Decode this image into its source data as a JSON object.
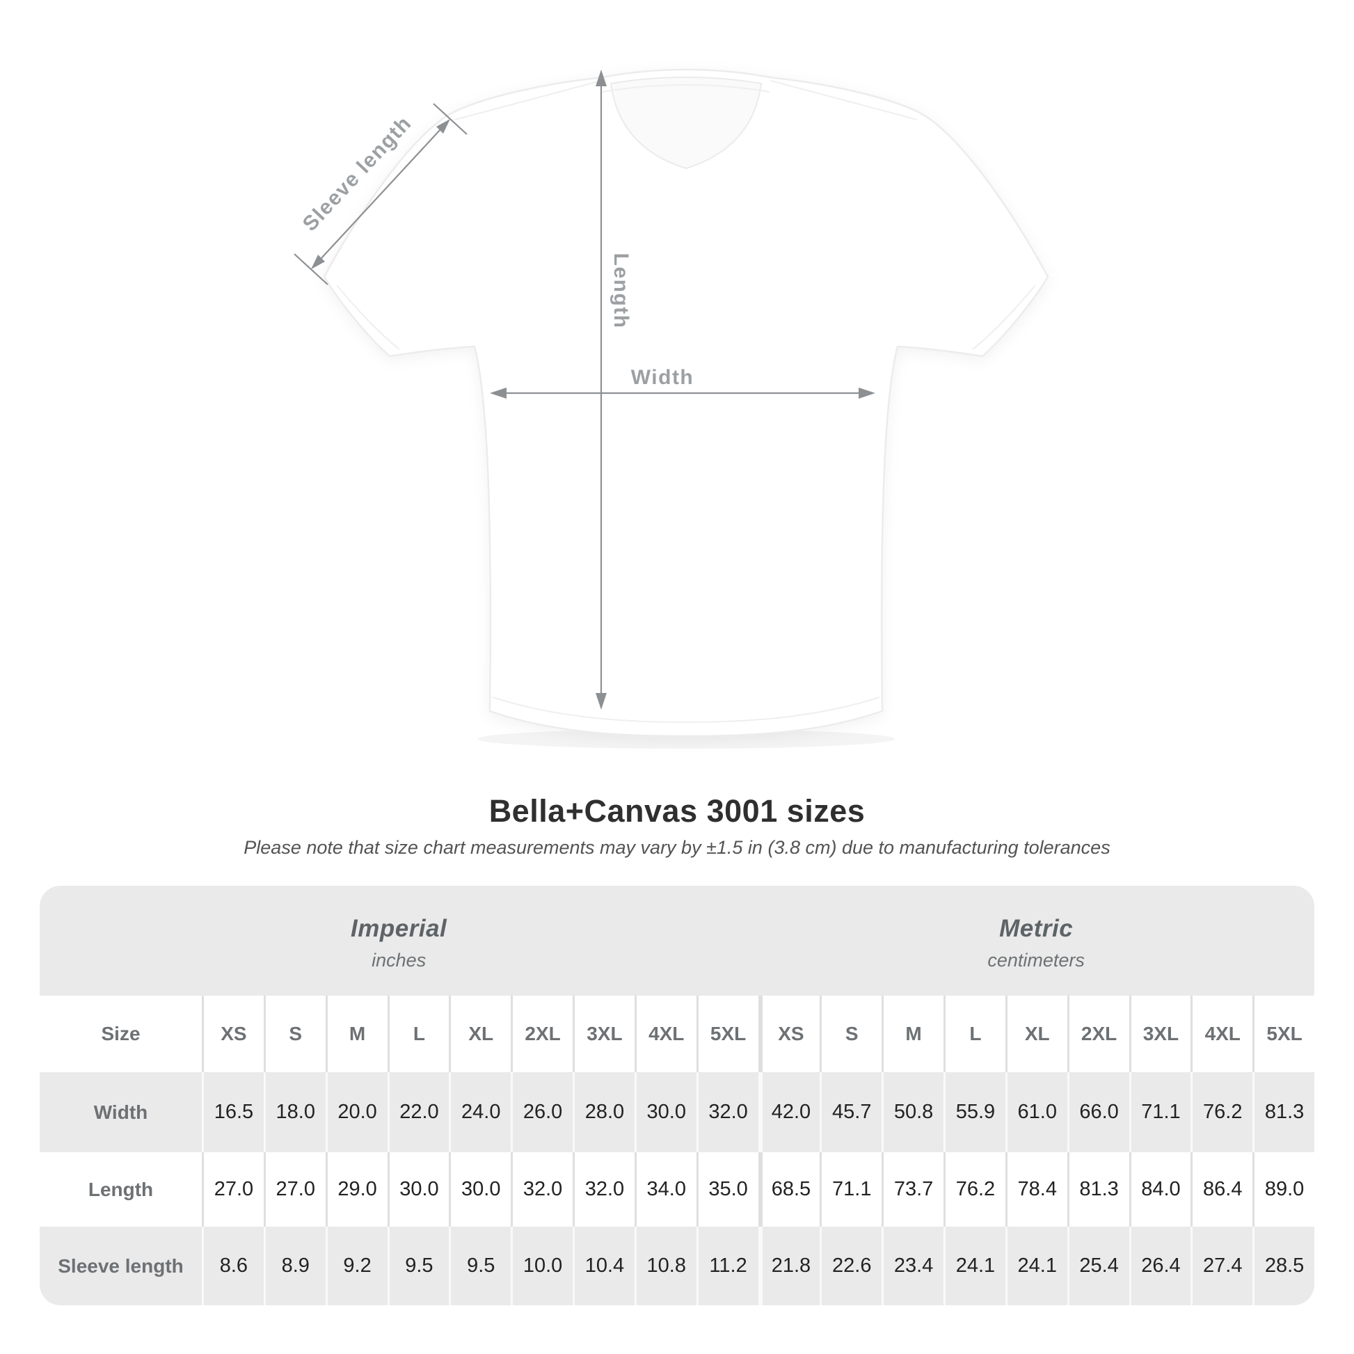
{
  "title": "Bella+Canvas 3001 sizes",
  "subtitle": "Please note that size chart measurements may vary by ±1.5 in (3.8 cm) due to manufacturing tolerances",
  "diagram": {
    "labels": {
      "sleeve_length": "Sleeve length",
      "length": "Length",
      "width": "Width"
    },
    "colors": {
      "arrow": "#8d9093",
      "label": "#9ca0a3",
      "shirt": "#ffffff",
      "shirt_outline": "#ececec"
    }
  },
  "table": {
    "size_header": "Size",
    "groups": [
      {
        "name": "Imperial",
        "unit": "inches"
      },
      {
        "name": "Metric",
        "unit": "centimeters"
      }
    ],
    "sizes": [
      "XS",
      "S",
      "M",
      "L",
      "XL",
      "2XL",
      "3XL",
      "4XL",
      "5XL"
    ],
    "rows": [
      {
        "label": "Width",
        "imperial": [
          "16.5",
          "18.0",
          "20.0",
          "22.0",
          "24.0",
          "26.0",
          "28.0",
          "30.0",
          "32.0"
        ],
        "metric": [
          "42.0",
          "45.7",
          "50.8",
          "55.9",
          "61.0",
          "66.0",
          "71.1",
          "76.2",
          "81.3"
        ]
      },
      {
        "label": "Length",
        "imperial": [
          "27.0",
          "27.0",
          "29.0",
          "30.0",
          "30.0",
          "32.0",
          "32.0",
          "34.0",
          "35.0"
        ],
        "metric": [
          "68.5",
          "71.1",
          "73.7",
          "76.2",
          "78.4",
          "81.3",
          "84.0",
          "86.4",
          "89.0"
        ]
      },
      {
        "label": "Sleeve length",
        "imperial": [
          "8.6",
          "8.9",
          "9.2",
          "9.5",
          "9.5",
          "10.0",
          "10.4",
          "10.8",
          "11.2"
        ],
        "metric": [
          "21.8",
          "22.6",
          "23.4",
          "24.1",
          "24.1",
          "25.4",
          "26.4",
          "27.4",
          "28.5"
        ]
      }
    ],
    "colors": {
      "container": "#eaeaea",
      "white_row": "#ffffff",
      "header_text": "#6d7174",
      "value_text": "#222222"
    }
  },
  "chart_data": {
    "type": "table",
    "title": "Bella+Canvas 3001 sizes",
    "columns": [
      "Size",
      "XS",
      "S",
      "M",
      "L",
      "XL",
      "2XL",
      "3XL",
      "4XL",
      "5XL"
    ],
    "imperial_inches": {
      "Width": [
        16.5,
        18.0,
        20.0,
        22.0,
        24.0,
        26.0,
        28.0,
        30.0,
        32.0
      ],
      "Length": [
        27.0,
        27.0,
        29.0,
        30.0,
        30.0,
        32.0,
        32.0,
        34.0,
        35.0
      ],
      "Sleeve length": [
        8.6,
        8.9,
        9.2,
        9.5,
        9.5,
        10.0,
        10.4,
        10.8,
        11.2
      ]
    },
    "metric_centimeters": {
      "Width": [
        42.0,
        45.7,
        50.8,
        55.9,
        61.0,
        66.0,
        71.1,
        76.2,
        81.3
      ],
      "Length": [
        68.5,
        71.1,
        73.7,
        76.2,
        78.4,
        81.3,
        84.0,
        86.4,
        89.0
      ],
      "Sleeve length": [
        21.8,
        22.6,
        23.4,
        24.1,
        24.1,
        25.4,
        26.4,
        27.4,
        28.5
      ]
    }
  }
}
